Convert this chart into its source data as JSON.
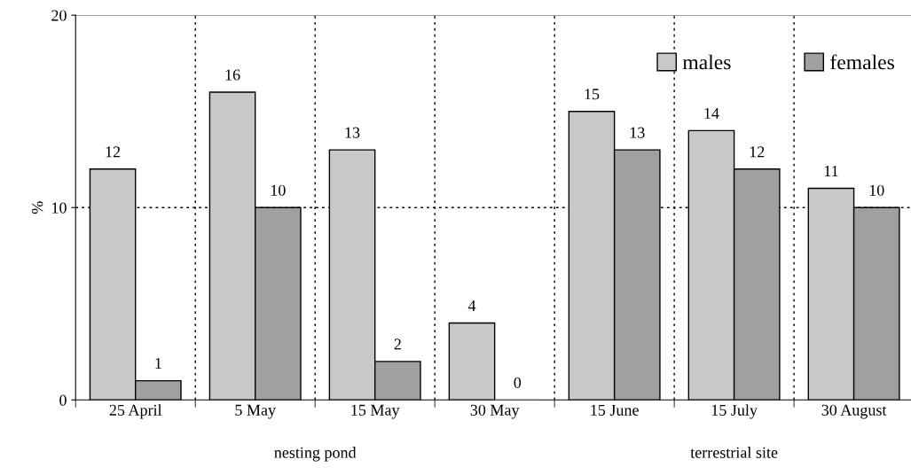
{
  "chart_data": {
    "type": "bar",
    "ylabel": "%",
    "categories": [
      "25 April",
      "5 May",
      "15 May",
      "30 May",
      "15 June",
      "15 July",
      "30 August"
    ],
    "series": [
      {
        "name": "males",
        "color": "#c8c8c8",
        "values": [
          12,
          16,
          13,
          4,
          15,
          14,
          11
        ]
      },
      {
        "name": "females",
        "color": "#a0a0a0",
        "values": [
          1,
          10,
          2,
          0,
          13,
          12,
          10
        ]
      }
    ],
    "ylim": [
      0,
      20
    ],
    "yticks": [
      0,
      10,
      20
    ],
    "grid": true,
    "legend": "top right",
    "data_labels": true,
    "annotations": [
      "nesting pond",
      "terrestrial site"
    ]
  }
}
